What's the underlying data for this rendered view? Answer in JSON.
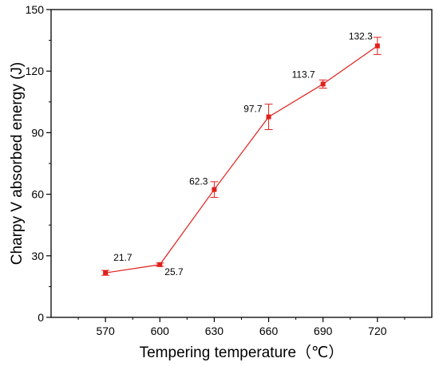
{
  "chart_data": {
    "type": "line",
    "xlabel": "Tempering temperature（℃）",
    "ylabel": "Charpy V absorbed energy (J)",
    "x": [
      570,
      600,
      630,
      660,
      690,
      720
    ],
    "xlim": [
      540,
      750
    ],
    "xticks": [
      570,
      600,
      630,
      660,
      690,
      720
    ],
    "ylim": [
      0,
      150
    ],
    "yticks": [
      0,
      30,
      60,
      90,
      120,
      150
    ],
    "series": [
      {
        "values": [
          21.7,
          25.7,
          62.3,
          97.7,
          113.7,
          132.3
        ],
        "errors": [
          1.2,
          0.8,
          3.8,
          6.2,
          2.0,
          4.2
        ],
        "color": "#e0201b"
      }
    ],
    "data_labels": [
      "21.7",
      "25.7",
      "62.3",
      "97.7",
      "113.7",
      "132.3"
    ],
    "grid": false,
    "legend": "none"
  }
}
